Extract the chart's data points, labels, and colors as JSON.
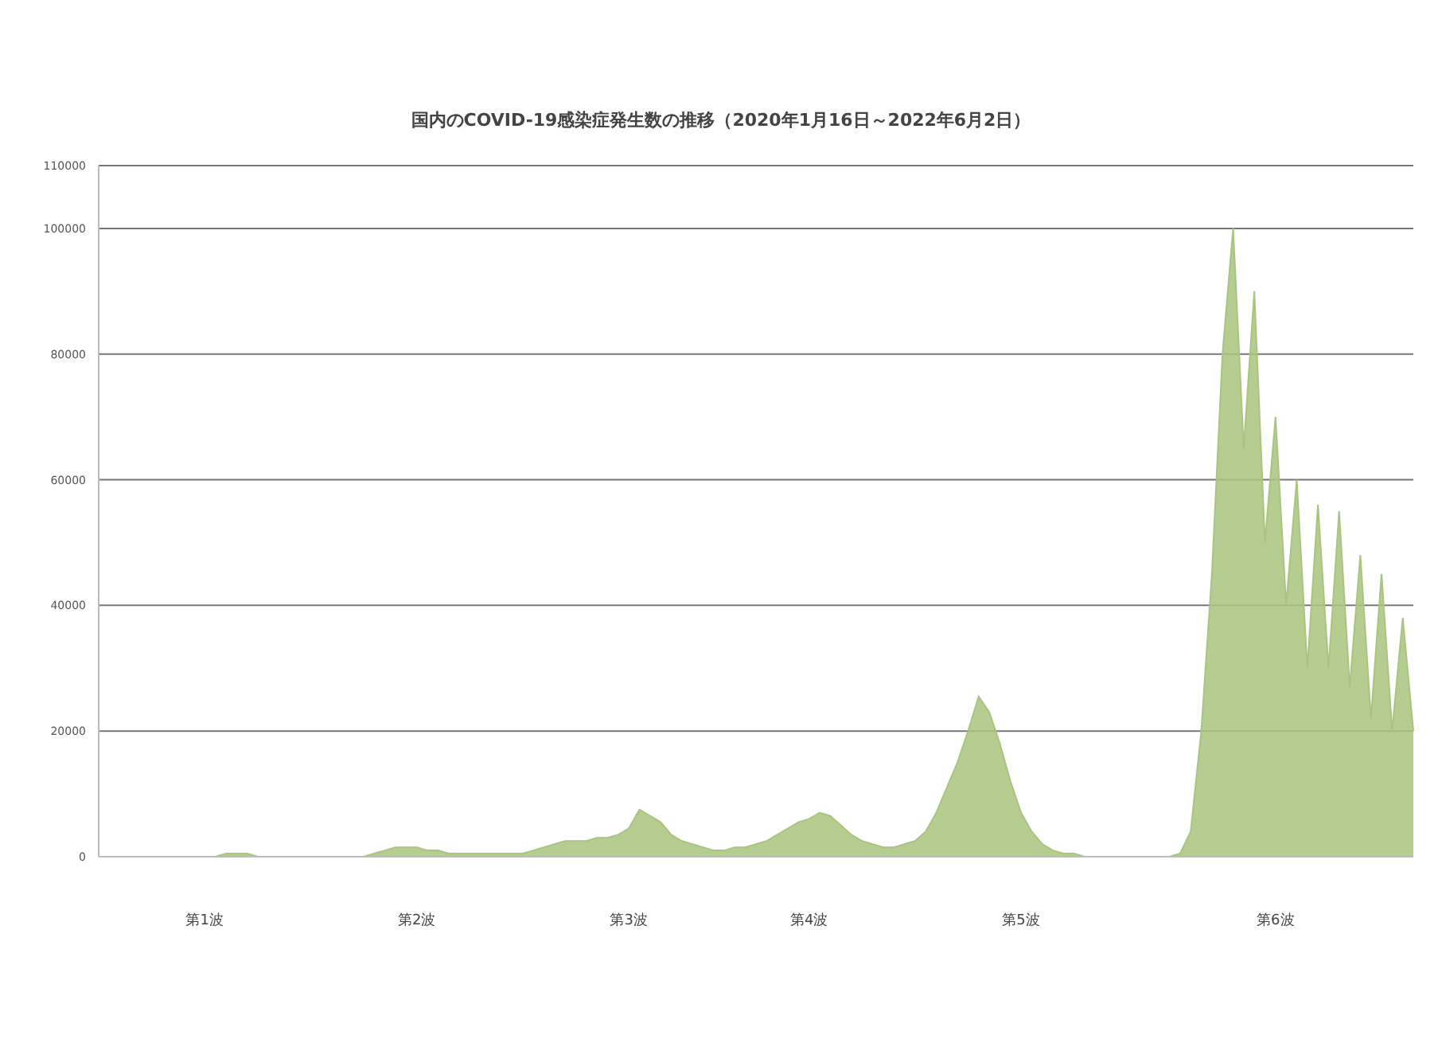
{
  "chart_data": {
    "type": "area",
    "title": "国内のCOVID-19感染症発生数の推移（2020年1月16日～2022年6月2日）",
    "categories": [
      null,
      null,
      null,
      null,
      null,
      null,
      null,
      null,
      null,
      null,
      "第1波",
      null,
      null,
      null,
      null,
      null,
      null,
      null,
      null,
      null,
      null,
      null,
      null,
      null,
      null,
      null,
      null,
      null,
      null,
      null,
      "第2波",
      null,
      null,
      null,
      null,
      null,
      null,
      null,
      null,
      null,
      null,
      null,
      null,
      null,
      null,
      null,
      null,
      null,
      null,
      null,
      "第3波",
      null,
      null,
      null,
      null,
      null,
      null,
      null,
      null,
      null,
      null,
      null,
      null,
      null,
      null,
      null,
      null,
      "第4波",
      null,
      null,
      null,
      null,
      null,
      null,
      null,
      null,
      null,
      null,
      null,
      null,
      null,
      null,
      null,
      null,
      null,
      null,
      null,
      "第5波",
      null,
      null,
      null,
      null,
      null,
      null,
      null,
      null,
      null,
      null,
      null,
      null,
      null,
      null,
      null,
      null,
      null,
      null,
      null,
      null,
      null,
      null,
      null,
      "第6波",
      null,
      null,
      null,
      null,
      null,
      null,
      null,
      null,
      null,
      null,
      null,
      null,
      null
    ],
    "series": [
      {
        "color": "#a9c47f",
        "values": [
          0,
          0,
          0,
          0,
          0,
          0,
          0,
          0,
          0,
          0,
          0,
          0,
          500,
          500,
          500,
          0,
          0,
          0,
          0,
          0,
          0,
          0,
          0,
          0,
          0,
          0,
          500,
          1000,
          1500,
          1500,
          1500,
          1000,
          1000,
          500,
          500,
          500,
          500,
          500,
          500,
          500,
          500,
          1000,
          1500,
          2000,
          2500,
          2500,
          2500,
          3000,
          3000,
          3500,
          4500,
          7500,
          6500,
          5500,
          3500,
          2500,
          2000,
          1500,
          1000,
          1000,
          1500,
          1500,
          2000,
          2500,
          3500,
          4500,
          5500,
          6000,
          7000,
          6500,
          5000,
          3500,
          2500,
          2000,
          1500,
          1500,
          2000,
          2500,
          4000,
          7000,
          11000,
          15000,
          20000,
          25500,
          23000,
          18000,
          12000,
          7000,
          4000,
          2000,
          1000,
          500,
          500,
          0,
          0,
          0,
          0,
          0,
          0,
          0,
          0,
          0,
          500,
          4000,
          20000,
          45000,
          80000,
          100000,
          65000,
          90000,
          50000,
          70000,
          40000,
          60000,
          30000,
          56000,
          30000,
          55000,
          27000,
          48000,
          22000,
          45000,
          20000,
          38000,
          20000
        ]
      }
    ],
    "ylim": [
      0,
      110000
    ],
    "yticks": [
      0,
      20000,
      40000,
      60000,
      80000,
      100000,
      110000
    ],
    "grid": "y"
  }
}
